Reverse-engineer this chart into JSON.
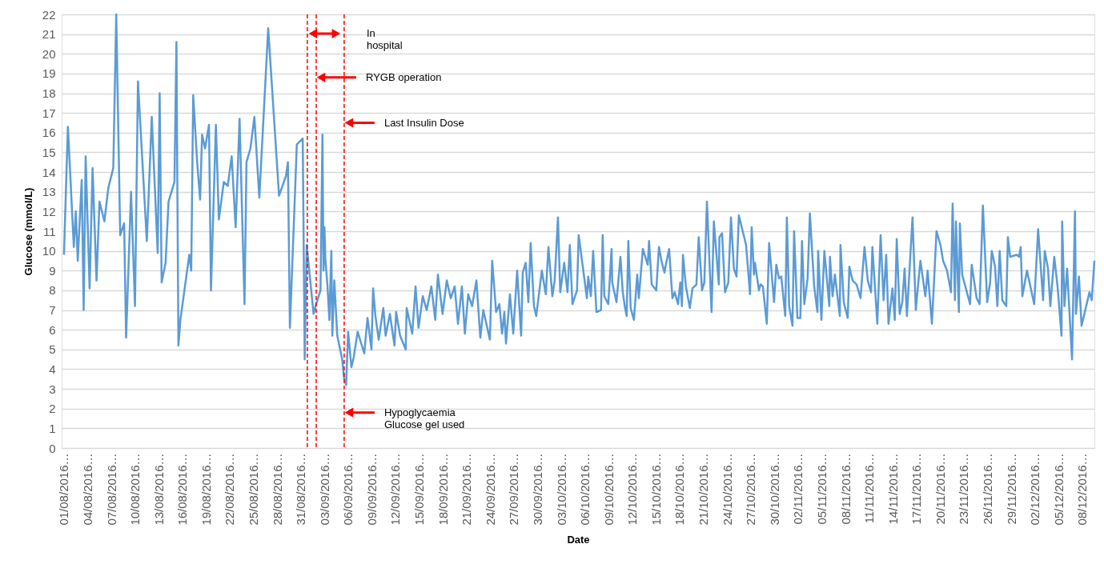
{
  "chart_data": {
    "type": "line",
    "xlabel": "Date",
    "ylabel": "Glucose (mmol/L)",
    "color": "#5b9bd5",
    "line_style": "solid",
    "grid": "y",
    "xlim": [
      "2016-07-31T17:00",
      "2016-12-09T13:00"
    ],
    "ylim": [
      0,
      22
    ],
    "yticks": [
      0,
      1,
      2,
      3,
      4,
      5,
      6,
      7,
      8,
      9,
      10,
      11,
      12,
      13,
      14,
      15,
      16,
      17,
      18,
      19,
      20,
      21,
      22
    ],
    "xticks": [
      {
        "value": "2016-08-01",
        "label": "01/08/2016…"
      },
      {
        "value": "2016-08-04",
        "label": "04/08/2016…"
      },
      {
        "value": "2016-08-07",
        "label": "07/08/2016…"
      },
      {
        "value": "2016-08-10",
        "label": "10/08/2016…"
      },
      {
        "value": "2016-08-13",
        "label": "13/08/2016…"
      },
      {
        "value": "2016-08-16",
        "label": "16/08/2016…"
      },
      {
        "value": "2016-08-19",
        "label": "19/08/2016…"
      },
      {
        "value": "2016-08-22",
        "label": "22/08/2016…"
      },
      {
        "value": "2016-08-25",
        "label": "25/08/2016…"
      },
      {
        "value": "2016-08-28",
        "label": "28/08/2016…"
      },
      {
        "value": "2016-08-31",
        "label": "31/08/2016…"
      },
      {
        "value": "2016-09-03",
        "label": "03/09/2016…"
      },
      {
        "value": "2016-09-06",
        "label": "06/09/2016…"
      },
      {
        "value": "2016-09-09",
        "label": "09/09/2016…"
      },
      {
        "value": "2016-09-12",
        "label": "12/09/2016…"
      },
      {
        "value": "2016-09-15",
        "label": "15/09/2016…"
      },
      {
        "value": "2016-09-18",
        "label": "18/09/2016…"
      },
      {
        "value": "2016-09-21",
        "label": "21/09/2016…"
      },
      {
        "value": "2016-09-24",
        "label": "24/09/2016…"
      },
      {
        "value": "2016-09-27",
        "label": "27/09/2016…"
      },
      {
        "value": "2016-09-30",
        "label": "30/09/2016…"
      },
      {
        "value": "2016-10-03",
        "label": "03/10/2016…"
      },
      {
        "value": "2016-10-06",
        "label": "06/10/2016…"
      },
      {
        "value": "2016-10-09",
        "label": "09/10/2016…"
      },
      {
        "value": "2016-10-12",
        "label": "12/10/2016…"
      },
      {
        "value": "2016-10-15",
        "label": "15/10/2016…"
      },
      {
        "value": "2016-10-18",
        "label": "18/10/2016…"
      },
      {
        "value": "2016-10-21",
        "label": "21/10/2016…"
      },
      {
        "value": "2016-10-24",
        "label": "24/10/2016…"
      },
      {
        "value": "2016-10-27",
        "label": "27/10/2016…"
      },
      {
        "value": "2016-10-30",
        "label": "30/10/2016…"
      },
      {
        "value": "2016-11-02",
        "label": "02/11/2016…"
      },
      {
        "value": "2016-11-05",
        "label": "05/11/2016…"
      },
      {
        "value": "2016-11-08",
        "label": "08/11/2016…"
      },
      {
        "value": "2016-11-11",
        "label": "11/11/2016…"
      },
      {
        "value": "2016-11-14",
        "label": "14/11/2016…"
      },
      {
        "value": "2016-11-17",
        "label": "17/11/2016…"
      },
      {
        "value": "2016-11-20",
        "label": "20/11/2016…"
      },
      {
        "value": "2016-11-23",
        "label": "23/11/2016…"
      },
      {
        "value": "2016-11-26",
        "label": "26/11/2016…"
      },
      {
        "value": "2016-11-29",
        "label": "29/11/2016…"
      },
      {
        "value": "2016-12-02",
        "label": "02/12/2016…"
      },
      {
        "value": "2016-12-05",
        "label": "05/12/2016…"
      },
      {
        "value": "2016-12-08",
        "label": "08/12/2016…"
      }
    ],
    "x": [
      "2016-08-01T00:00",
      "2016-08-01T12:00",
      "2016-08-02T06:00",
      "2016-08-02T12:00",
      "2016-08-02T18:00",
      "2016-08-03T06:00",
      "2016-08-03T12:00",
      "2016-08-03T18:00",
      "2016-08-04T06:00",
      "2016-08-04T15:00",
      "2016-08-05T03:00",
      "2016-08-05T12:00",
      "2016-08-06T03:00",
      "2016-08-06T15:00",
      "2016-08-07T06:00",
      "2016-08-07T15:00",
      "2016-08-08T03:00",
      "2016-08-08T15:00",
      "2016-08-08T21:00",
      "2016-08-09T12:00",
      "2016-08-10T00:00",
      "2016-08-10T09:00",
      "2016-08-11T12:00",
      "2016-08-12T03:00",
      "2016-08-12T21:00",
      "2016-08-13T03:00",
      "2016-08-13T09:00",
      "2016-08-13T21:00",
      "2016-08-14T06:00",
      "2016-08-15T00:00",
      "2016-08-15T06:00",
      "2016-08-15T12:00",
      "2016-08-15T18:00",
      "2016-08-16T21:00",
      "2016-08-17T03:00",
      "2016-08-17T09:00",
      "2016-08-17T21:00",
      "2016-08-18T06:00",
      "2016-08-18T12:00",
      "2016-08-18T21:00",
      "2016-08-19T09:00",
      "2016-08-19T15:00",
      "2016-08-20T06:00",
      "2016-08-20T15:00",
      "2016-08-21T06:00",
      "2016-08-21T18:00",
      "2016-08-22T06:00",
      "2016-08-22T18:00",
      "2016-08-23T06:00",
      "2016-08-23T21:00",
      "2016-08-24T03:00",
      "2016-08-24T15:00",
      "2016-08-25T03:00",
      "2016-08-25T18:00",
      "2016-08-26T21:00",
      "2016-08-28T06:00",
      "2016-08-29T03:00",
      "2016-08-29T09:00",
      "2016-08-29T15:00",
      "2016-08-30T12:00",
      "2016-08-31T06:00",
      "2016-08-31T12:00",
      "2016-08-31T18:00",
      "2016-09-01T15:00",
      "2016-09-01T21:00",
      "2016-09-02T12:00",
      "2016-09-02T15:00",
      "2016-09-02T18:00",
      "2016-09-02T21:00",
      "2016-09-03T00:00",
      "2016-09-03T03:00",
      "2016-09-03T09:00",
      "2016-09-03T15:00",
      "2016-09-03T21:00",
      "2016-09-04T00:00",
      "2016-09-04T06:00",
      "2016-09-04T15:00",
      "2016-09-05T06:00",
      "2016-09-05T12:00",
      "2016-09-05T18:00",
      "2016-09-06T00:00",
      "2016-09-06T10:00",
      "2016-09-06T17:00",
      "2016-09-07T05:00",
      "2016-09-08T01:00",
      "2016-09-08T11:00",
      "2016-09-08T23:00",
      "2016-09-09T04:00",
      "2016-09-09T11:00",
      "2016-09-09T21:00",
      "2016-09-10T11:00",
      "2016-09-10T18:00",
      "2016-09-11T07:00",
      "2016-09-11T21:00",
      "2016-09-12T02:00",
      "2016-09-12T14:00",
      "2016-09-13T07:00",
      "2016-09-13T10:00",
      "2016-09-14T03:00",
      "2016-09-14T13:00",
      "2016-09-14T22:00",
      "2016-09-15T11:00",
      "2016-09-15T23:00",
      "2016-09-16T13:00",
      "2016-09-17T01:00",
      "2016-09-17T09:00",
      "2016-09-17T23:00",
      "2016-09-18T12:00",
      "2016-09-19T00:00",
      "2016-09-19T12:00",
      "2016-09-19T22:00",
      "2016-09-20T10:00",
      "2016-09-20T19:00",
      "2016-09-21T05:00",
      "2016-09-21T17:00",
      "2016-09-22T06:00",
      "2016-09-22T18:00",
      "2016-09-23T03:00",
      "2016-09-23T23:00",
      "2016-09-24T06:00",
      "2016-09-24T18:00",
      "2016-09-25T04:00",
      "2016-09-25T12:00",
      "2016-09-25T19:00",
      "2016-09-26T00:00",
      "2016-09-26T12:00",
      "2016-09-26T22:00",
      "2016-09-27T10:00",
      "2016-09-27T22:00",
      "2016-09-28T03:00",
      "2016-09-28T12:00",
      "2016-09-28T20:00",
      "2016-09-29T03:00",
      "2016-09-29T13:00",
      "2016-09-29T20:00",
      "2016-09-30T13:00",
      "2016-10-01T01:00",
      "2016-10-01T09:00",
      "2016-10-01T21:00",
      "2016-10-02T04:00",
      "2016-10-02T14:00",
      "2016-10-02T21:00",
      "2016-10-03T09:00",
      "2016-10-03T19:00",
      "2016-10-04T02:00",
      "2016-10-04T10:00",
      "2016-10-05T00:00",
      "2016-10-05T05:00",
      "2016-10-06T06:00",
      "2016-10-06T10:00",
      "2016-10-06T18:00",
      "2016-10-07T01:00",
      "2016-10-07T11:00",
      "2016-10-08T01:00",
      "2016-10-08T06:00",
      "2016-10-08T11:00",
      "2016-10-08T23:00",
      "2016-10-09T09:00",
      "2016-10-09T11:00",
      "2016-10-10T00:00",
      "2016-10-10T12:00",
      "2016-10-10T19:00",
      "2016-10-11T02:00",
      "2016-10-11T07:00",
      "2016-10-11T12:00",
      "2016-10-11T19:00",
      "2016-10-12T05:00",
      "2016-10-12T15:00",
      "2016-10-12T20:00",
      "2016-10-13T08:00",
      "2016-10-13T23:00",
      "2016-10-14T03:00",
      "2016-10-14T11:00",
      "2016-10-15T01:00",
      "2016-10-15T09:00",
      "2016-10-15T18:00",
      "2016-10-16T02:00",
      "2016-10-16T06:00",
      "2016-10-16T16:00",
      "2016-10-17T02:00",
      "2016-10-17T09:00",
      "2016-10-17T19:00",
      "2016-10-18T02:00",
      "2016-10-18T07:00",
      "2016-10-18T10:00",
      "2016-10-18T19:00",
      "2016-10-19T07:00",
      "2016-10-19T15:00",
      "2016-10-20T03:00",
      "2016-10-20T10:00",
      "2016-10-20T20:00",
      "2016-10-21T03:00",
      "2016-10-21T11:00",
      "2016-10-22T01:00",
      "2016-10-22T08:00",
      "2016-10-22T23:00",
      "2016-10-23T01:00",
      "2016-10-23T09:00",
      "2016-10-23T18:00",
      "2016-10-24T04:00",
      "2016-10-24T12:00",
      "2016-10-24T21:00",
      "2016-10-25T05:00",
      "2016-10-25T12:00",
      "2016-10-26T10:00",
      "2016-10-26T22:00",
      "2016-10-27T03:00",
      "2016-10-27T10:00",
      "2016-10-27T13:00",
      "2016-10-28T01:00",
      "2016-10-28T06:00",
      "2016-10-28T13:00",
      "2016-10-29T01:00",
      "2016-10-29T08:00",
      "2016-10-29T23:00",
      "2016-10-30T06:00",
      "2016-10-30T14:00",
      "2016-10-30T21:00",
      "2016-10-31T09:00",
      "2016-10-31T14:00",
      "2016-10-31T21:00",
      "2016-11-01T07:00",
      "2016-11-01T12:00",
      "2016-11-01T22:00",
      "2016-11-02T07:00",
      "2016-11-02T12:00",
      "2016-11-02T19:00",
      "2016-11-03T05:00",
      "2016-11-03T12:00",
      "2016-11-04T01:00",
      "2016-11-04T11:00",
      "2016-11-04T13:00",
      "2016-11-04T23:00",
      "2016-11-05T08:00",
      "2016-11-05T23:00",
      "2016-11-06T01:00",
      "2016-11-06T09:00",
      "2016-11-06T16:00",
      "2016-11-07T07:00",
      "2016-11-07T09:00",
      "2016-11-07T19:00",
      "2016-11-08T07:00",
      "2016-11-08T12:00",
      "2016-11-08T22:00",
      "2016-11-09T10:00",
      "2016-11-09T22:00",
      "2016-11-10T03:00",
      "2016-11-10T10:00",
      "2016-11-10T20:00",
      "2016-11-11T06:00",
      "2016-11-11T10:00",
      "2016-11-12T01:00",
      "2016-11-12T11:00",
      "2016-11-12T20:00",
      "2016-11-13T04:00",
      "2016-11-13T11:00",
      "2016-11-13T23:00",
      "2016-11-14T06:00",
      "2016-11-14T12:00",
      "2016-11-14T21:00",
      "2016-11-15T05:00",
      "2016-11-15T12:00",
      "2016-11-15T19:00",
      "2016-11-16T12:00",
      "2016-11-16T22:00",
      "2016-11-17T05:00",
      "2016-11-17T12:00",
      "2016-11-18T03:00",
      "2016-11-18T10:00",
      "2016-11-18T23:00",
      "2016-11-19T13:00",
      "2016-11-20T01:00",
      "2016-11-20T09:00",
      "2016-11-20T21:00",
      "2016-11-21T09:00",
      "2016-11-21T14:00",
      "2016-11-21T21:00",
      "2016-11-22T00:00",
      "2016-11-22T09:00",
      "2016-11-22T12:00",
      "2016-11-22T19:00",
      "2016-11-23T19:00",
      "2016-11-24T00:00",
      "2016-11-24T15:00",
      "2016-11-25T00:00",
      "2016-11-25T10:00",
      "2016-11-25T23:00",
      "2016-11-26T08:00",
      "2016-11-26T13:00",
      "2016-11-26T23:00",
      "2016-11-27T06:00",
      "2016-11-27T13:00",
      "2016-11-27T21:00",
      "2016-11-28T09:00",
      "2016-11-28T14:00",
      "2016-11-28T21:00",
      "2016-11-29T17:00",
      "2016-11-30T00:00",
      "2016-11-30T05:00",
      "2016-11-30T10:00",
      "2016-12-01T00:00",
      "2016-12-01T22:00",
      "2016-12-02T10:00",
      "2016-12-03T01:00",
      "2016-12-03T06:00",
      "2016-12-03T16:00",
      "2016-12-03T23:00",
      "2016-12-04T11:00",
      "2016-12-04T21:00",
      "2016-12-05T09:00",
      "2016-12-05T11:00",
      "2016-12-05T18:00",
      "2016-12-06T02:00",
      "2016-12-06T17:00",
      "2016-12-07T02:00",
      "2016-12-07T05:00",
      "2016-12-07T14:00",
      "2016-12-07T22:00",
      "2016-12-08T22:00",
      "2016-12-09T05:00",
      "2016-12-09T13:00"
    ],
    "values": [
      9.8,
      16.3,
      10.2,
      12.0,
      9.5,
      13.6,
      7.0,
      14.8,
      8.1,
      14.2,
      8.5,
      12.5,
      11.5,
      13.2,
      14.2,
      22.0,
      10.8,
      11.4,
      5.6,
      13.0,
      7.2,
      18.6,
      10.5,
      16.8,
      9.9,
      18.0,
      8.4,
      9.4,
      12.5,
      13.5,
      20.6,
      5.2,
      6.5,
      9.8,
      9.0,
      17.9,
      14.5,
      12.6,
      15.9,
      15.2,
      16.4,
      8.0,
      16.4,
      11.6,
      13.5,
      13.3,
      14.8,
      11.2,
      16.7,
      7.3,
      14.5,
      15.2,
      16.8,
      12.7,
      21.3,
      12.8,
      13.8,
      14.5,
      6.1,
      15.4,
      15.7,
      4.5,
      10.3,
      6.8,
      7.2,
      8.0,
      11.8,
      15.9,
      9.0,
      11.2,
      9.5,
      8.3,
      6.5,
      10.0,
      5.7,
      8.5,
      5.7,
      4.5,
      3.5,
      3.2,
      5.9,
      4.1,
      4.6,
      5.9,
      4.8,
      6.6,
      5.0,
      8.1,
      6.7,
      5.5,
      7.1,
      5.7,
      6.8,
      5.2,
      6.9,
      5.7,
      5.0,
      7.1,
      5.8,
      8.2,
      6.1,
      7.7,
      7.0,
      8.2,
      6.5,
      8.8,
      6.8,
      8.5,
      7.6,
      8.2,
      6.3,
      8.2,
      5.8,
      7.8,
      7.2,
      8.5,
      5.6,
      7.0,
      5.5,
      9.5,
      6.9,
      7.3,
      5.8,
      6.9,
      5.3,
      7.8,
      5.8,
      9.0,
      5.7,
      8.9,
      9.4,
      7.4,
      10.4,
      7.2,
      6.7,
      9.0,
      7.8,
      10.2,
      7.7,
      8.5,
      11.7,
      7.9,
      9.4,
      7.9,
      10.3,
      7.3,
      8.0,
      10.8,
      7.6,
      8.7,
      7.7,
      10.0,
      6.9,
      7.0,
      10.8,
      7.7,
      7.3,
      10.1,
      8.4,
      7.4,
      9.7,
      7.9,
      7.1,
      6.7,
      10.5,
      7.1,
      6.5,
      8.8,
      7.6,
      10.1,
      9.3,
      10.5,
      8.3,
      8.0,
      10.2,
      9.4,
      8.9,
      9.3,
      10.1,
      7.6,
      7.9,
      7.3,
      8.4,
      7.2,
      9.8,
      8.2,
      7.1,
      8.1,
      8.3,
      10.7,
      8.0,
      8.4,
      12.5,
      6.9,
      11.5,
      8.3,
      10.7,
      10.9,
      7.9,
      8.4,
      11.7,
      9.1,
      8.7,
      11.8,
      10.3,
      7.8,
      11.2,
      8.8,
      9.4,
      8.0,
      8.3,
      8.2,
      6.3,
      10.4,
      7.4,
      9.3,
      8.6,
      8.7,
      6.7,
      11.7,
      7.2,
      6.2,
      11.0,
      6.6,
      6.6,
      10.5,
      7.3,
      8.6,
      11.9,
      8.2,
      6.9,
      10.0,
      6.5,
      10.0,
      7.2,
      9.7,
      7.7,
      8.8,
      6.7,
      10.3,
      7.4,
      6.6,
      9.2,
      8.5,
      8.3,
      7.6,
      8.7,
      10.2,
      8.5,
      7.9,
      10.2,
      6.3,
      10.8,
      7.5,
      9.8,
      6.3,
      8.1,
      6.5,
      10.6,
      6.8,
      7.4,
      9.1,
      6.7,
      11.7,
      7.0,
      8.3,
      9.5,
      7.7,
      9.0,
      6.3,
      11.0,
      10.3,
      9.5,
      9.0,
      7.9,
      12.4,
      7.5,
      11.5,
      6.9,
      11.4,
      8.8,
      7.3,
      9.3,
      7.6,
      7.3,
      12.3,
      7.4,
      8.4,
      10.0,
      9.2,
      7.2,
      10.0,
      7.5,
      7.2,
      10.7,
      9.7,
      9.8,
      9.7,
      10.2,
      7.7,
      9.0,
      7.3,
      11.1,
      7.5,
      10.0,
      9.1,
      7.2,
      9.7,
      8.2,
      5.7,
      11.5,
      7.2,
      9.1,
      4.5,
      12.0,
      6.8,
      8.7,
      6.2,
      7.9,
      7.5,
      9.5
    ],
    "ref_lines": [
      {
        "axis": "x",
        "value": "2016-08-31T20:00",
        "color": "#ff0000",
        "line_style": "dashed"
      },
      {
        "axis": "x",
        "value": "2016-09-01T23:00",
        "color": "#ff0000",
        "line_style": "dashed"
      },
      {
        "axis": "x",
        "value": "2016-09-05T12:00",
        "color": "#ff0000",
        "line_style": "dashed"
      }
    ],
    "annotations": [
      "In\nhospital",
      {
        "text": "RYGB operation",
        "x": "2016-09-01T23:00",
        "y": 18.8
      },
      {
        "text": "Last Insulin Dose",
        "x": "2016-09-05T12:00",
        "y": 16.5
      },
      {
        "text": "Hypoglycaemia\nGlucose gel used",
        "x": "2016-09-05T12:00",
        "y": 1.8
      }
    ]
  }
}
